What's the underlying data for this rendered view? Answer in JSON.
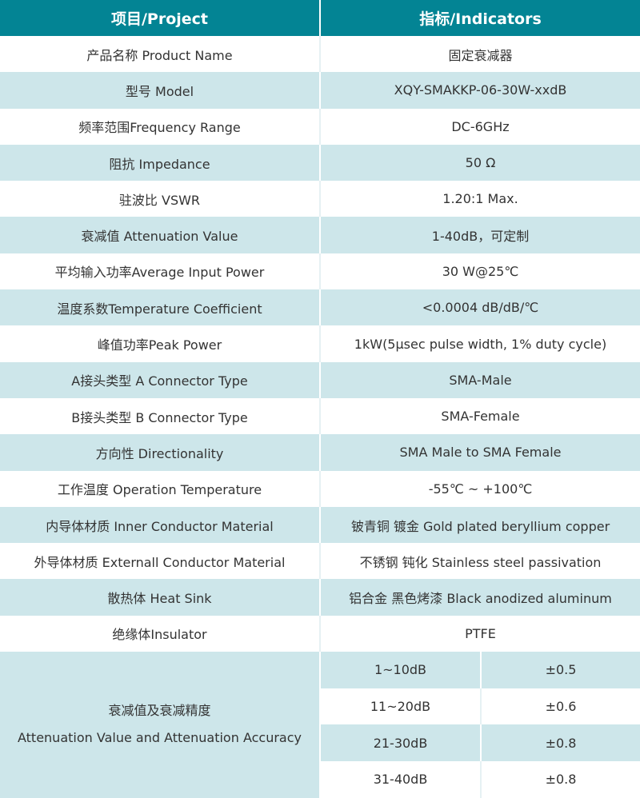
{
  "header": {
    "project": "项目/Project",
    "indicators": "指标/Indicators"
  },
  "colors": {
    "header": "#038494",
    "alt_row": "#cde6ea"
  },
  "rows": [
    {
      "label": "产品名称 Product Name",
      "value": "固定衰减器"
    },
    {
      "label": "型号 Model",
      "value": "XQY-SMAKKP-06-30W-xxdB"
    },
    {
      "label": "频率范围Frequency Range",
      "value": "DC-6GHz"
    },
    {
      "label": "阻抗 Impedance",
      "value": "50 Ω"
    },
    {
      "label": "驻波比 VSWR",
      "value": "1.20:1 Max."
    },
    {
      "label": "衰减值 Attenuation Value",
      "value": "1-40dB，可定制"
    },
    {
      "label": "平均输入功率Average Input Power",
      "value": "30 W@25℃"
    },
    {
      "label": "温度系数Temperature Coefficient",
      "value": "<0.0004 dB/dB/℃"
    },
    {
      "label": "峰值功率Peak Power",
      "value": "1kW(5μsec pulse width, 1% duty cycle)"
    },
    {
      "label": "A接头类型 A Connector Type",
      "value": "SMA-Male"
    },
    {
      "label": "B接头类型 B Connector Type",
      "value": "SMA-Female"
    },
    {
      "label": "方向性 Directionality",
      "value": "SMA Male to SMA Female"
    },
    {
      "label": "工作温度 Operation Temperature",
      "value": "-55℃ ~ +100℃"
    },
    {
      "label": "内导体材质 Inner Conductor Material",
      "value": "铍青铜 镀金 Gold plated beryllium copper"
    },
    {
      "label": "外导体材质 Externall Conductor Material",
      "value": "不锈钢 钝化 Stainless steel passivation"
    },
    {
      "label": "散热体 Heat Sink",
      "value": "铝合金 黑色烤漆 Black anodized aluminum"
    },
    {
      "label": "绝缘体Insulator",
      "value": "PTFE"
    }
  ],
  "accuracy": {
    "label_cn": "衰减值及衰减精度",
    "label_en": "Attenuation Value and Attenuation Accuracy",
    "rows": [
      {
        "range": "1~10dB",
        "accuracy": "±0.5"
      },
      {
        "range": "11~20dB",
        "accuracy": "±0.6"
      },
      {
        "range": "21-30dB",
        "accuracy": "±0.8"
      },
      {
        "range": "31-40dB",
        "accuracy": "±0.8"
      }
    ]
  }
}
